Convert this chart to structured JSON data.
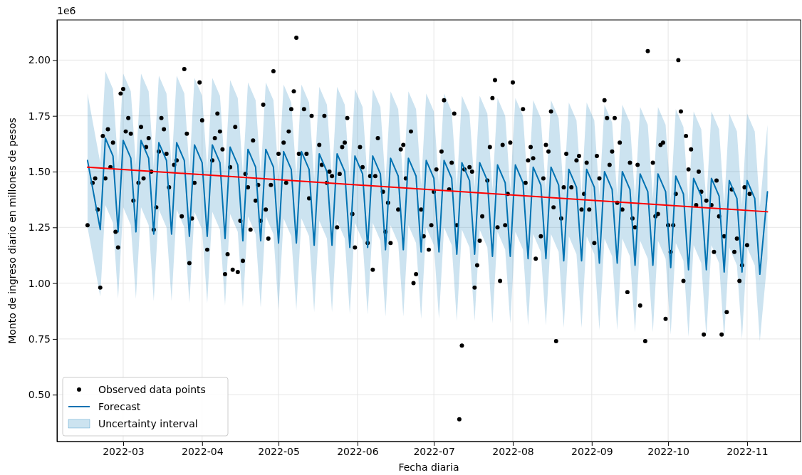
{
  "chart_data": {
    "type": "line",
    "xlabel": "Fecha diaria",
    "ylabel": "Monto de ingreso diario en millones de pesos",
    "annotations": [
      "1e6",
      "Uncertainty interval"
    ],
    "xlim": [
      "2022-02-03",
      "2022-11-22"
    ],
    "ylim": [
      0.29,
      2.18
    ],
    "xticks": [
      "2022-03",
      "2022-04",
      "2022-05",
      "2022-06",
      "2022-07",
      "2022-08",
      "2022-09",
      "2022-10",
      "2022-11"
    ],
    "yticks": [
      {
        "value": 0.5,
        "label": "0.50"
      },
      {
        "value": 0.75,
        "label": "0.75"
      },
      {
        "value": 1.0,
        "label": "1.00"
      },
      {
        "value": 1.25,
        "label": "1.25"
      },
      {
        "value": 1.5,
        "label": "1.50"
      },
      {
        "value": 1.75,
        "label": "1.75"
      },
      {
        "value": 2.0,
        "label": "2.00"
      }
    ],
    "grid": true,
    "legend": "bottom left",
    "series": [
      {
        "type": "scatter",
        "name": "Observed data points",
        "color": "#000000",
        "marker": "circle",
        "x": [
          "2022-02-15",
          "2022-02-17",
          "2022-02-18",
          "2022-02-19",
          "2022-02-20",
          "2022-02-21",
          "2022-02-22",
          "2022-02-23",
          "2022-02-24",
          "2022-02-25",
          "2022-02-26",
          "2022-02-27",
          "2022-02-28",
          "2022-03-01",
          "2022-03-02",
          "2022-03-03",
          "2022-03-04",
          "2022-03-05",
          "2022-03-07",
          "2022-03-08",
          "2022-03-09",
          "2022-03-10",
          "2022-03-11",
          "2022-03-12",
          "2022-03-13",
          "2022-03-14",
          "2022-03-15",
          "2022-03-16",
          "2022-03-17",
          "2022-03-18",
          "2022-03-19",
          "2022-03-21",
          "2022-03-22",
          "2022-03-24",
          "2022-03-25",
          "2022-03-26",
          "2022-03-27",
          "2022-03-28",
          "2022-03-29",
          "2022-03-31",
          "2022-04-01",
          "2022-04-03",
          "2022-04-05",
          "2022-04-06",
          "2022-04-07",
          "2022-04-08",
          "2022-04-09",
          "2022-04-10",
          "2022-04-11",
          "2022-04-12",
          "2022-04-13",
          "2022-04-14",
          "2022-04-15",
          "2022-04-16",
          "2022-04-17",
          "2022-04-18",
          "2022-04-19",
          "2022-04-20",
          "2022-04-21",
          "2022-04-22",
          "2022-04-23",
          "2022-04-24",
          "2022-04-25",
          "2022-04-26",
          "2022-04-27",
          "2022-04-28",
          "2022-04-29",
          "2022-05-01",
          "2022-05-03",
          "2022-05-04",
          "2022-05-05",
          "2022-05-06",
          "2022-05-07",
          "2022-05-08",
          "2022-05-09",
          "2022-05-11",
          "2022-05-12",
          "2022-05-13",
          "2022-05-14",
          "2022-05-17",
          "2022-05-18",
          "2022-05-19",
          "2022-05-20",
          "2022-05-21",
          "2022-05-22",
          "2022-05-24",
          "2022-05-25",
          "2022-05-26",
          "2022-05-27",
          "2022-05-28",
          "2022-05-30",
          "2022-05-31",
          "2022-06-02",
          "2022-06-03",
          "2022-06-05",
          "2022-06-06",
          "2022-06-07",
          "2022-06-08",
          "2022-06-09",
          "2022-06-11",
          "2022-06-12",
          "2022-06-13",
          "2022-06-14",
          "2022-06-17",
          "2022-06-18",
          "2022-06-19",
          "2022-06-20",
          "2022-06-22",
          "2022-06-23",
          "2022-06-24",
          "2022-06-26",
          "2022-06-27",
          "2022-06-29",
          "2022-06-30",
          "2022-07-01",
          "2022-07-02",
          "2022-07-04",
          "2022-07-05",
          "2022-07-07",
          "2022-07-08",
          "2022-07-09",
          "2022-07-10",
          "2022-07-11",
          "2022-07-12",
          "2022-07-13",
          "2022-07-15",
          "2022-07-16",
          "2022-07-17",
          "2022-07-18",
          "2022-07-19",
          "2022-07-20",
          "2022-07-22",
          "2022-07-23",
          "2022-07-24",
          "2022-07-25",
          "2022-07-26",
          "2022-07-27",
          "2022-07-28",
          "2022-07-29",
          "2022-07-30",
          "2022-07-31",
          "2022-08-01",
          "2022-08-05",
          "2022-08-06",
          "2022-08-07",
          "2022-08-08",
          "2022-08-09",
          "2022-08-10",
          "2022-08-12",
          "2022-08-13",
          "2022-08-14",
          "2022-08-15",
          "2022-08-16",
          "2022-08-17",
          "2022-08-18",
          "2022-08-20",
          "2022-08-21",
          "2022-08-22",
          "2022-08-24",
          "2022-08-26",
          "2022-08-27",
          "2022-08-28",
          "2022-08-29",
          "2022-08-30",
          "2022-08-31",
          "2022-09-02",
          "2022-09-03",
          "2022-09-04",
          "2022-09-06",
          "2022-09-07",
          "2022-09-08",
          "2022-09-09",
          "2022-09-10",
          "2022-09-11",
          "2022-09-12",
          "2022-09-13",
          "2022-09-15",
          "2022-09-16",
          "2022-09-17",
          "2022-09-18",
          "2022-09-19",
          "2022-09-20",
          "2022-09-22",
          "2022-09-23",
          "2022-09-25",
          "2022-09-26",
          "2022-09-27",
          "2022-09-28",
          "2022-09-29",
          "2022-09-30",
          "2022-10-01",
          "2022-10-02",
          "2022-10-03",
          "2022-10-04",
          "2022-10-05",
          "2022-10-06",
          "2022-10-07",
          "2022-10-08",
          "2022-10-09",
          "2022-10-10",
          "2022-10-12",
          "2022-10-13",
          "2022-10-14",
          "2022-10-15",
          "2022-10-16",
          "2022-10-18",
          "2022-10-19",
          "2022-10-20",
          "2022-10-21",
          "2022-10-22",
          "2022-10-23",
          "2022-10-24",
          "2022-10-26",
          "2022-10-27",
          "2022-10-28",
          "2022-10-29",
          "2022-10-30",
          "2022-10-31",
          "2022-11-01",
          "2022-11-02"
        ],
        "values": [
          1.26,
          1.45,
          1.47,
          1.33,
          0.98,
          1.66,
          1.47,
          1.69,
          1.52,
          1.63,
          1.23,
          1.16,
          1.85,
          1.87,
          1.68,
          1.74,
          1.67,
          1.37,
          1.45,
          1.7,
          1.47,
          1.61,
          1.65,
          1.5,
          1.24,
          1.34,
          1.59,
          1.74,
          1.69,
          1.58,
          1.43,
          1.53,
          1.55,
          1.3,
          1.96,
          1.67,
          1.09,
          1.29,
          1.45,
          1.9,
          1.73,
          1.15,
          1.55,
          1.65,
          1.76,
          1.68,
          1.6,
          1.04,
          1.13,
          1.52,
          1.06,
          1.7,
          1.05,
          1.28,
          1.1,
          1.49,
          1.43,
          1.24,
          1.64,
          1.37,
          1.44,
          1.28,
          1.8,
          1.33,
          1.2,
          1.44,
          1.95,
          1.58,
          1.63,
          1.45,
          1.68,
          1.78,
          1.86,
          2.1,
          1.58,
          1.78,
          1.58,
          1.38,
          1.75,
          1.62,
          1.53,
          1.75,
          1.45,
          1.5,
          1.48,
          1.25,
          1.49,
          1.61,
          1.63,
          1.74,
          1.31,
          1.16,
          1.61,
          1.52,
          1.18,
          1.48,
          1.06,
          1.48,
          1.65,
          1.41,
          1.23,
          1.36,
          1.18,
          1.33,
          1.6,
          1.62,
          1.47,
          1.68,
          1.0,
          1.04,
          1.33,
          1.21,
          1.15,
          1.26,
          1.41,
          1.51,
          1.59,
          1.82,
          1.42,
          1.54,
          1.76,
          1.26,
          0.39,
          0.72,
          1.51,
          1.52,
          1.5,
          0.98,
          1.08,
          1.19,
          1.3,
          1.46,
          1.61,
          1.83,
          1.91,
          1.25,
          1.01,
          1.62,
          1.26,
          1.4,
          1.63,
          1.9,
          1.78,
          1.45,
          1.55,
          1.61,
          1.56,
          1.11,
          1.21,
          1.47,
          1.62,
          1.59,
          1.77,
          1.34,
          0.74,
          1.29,
          1.43,
          1.58,
          1.43,
          1.55,
          1.57,
          1.33,
          1.4,
          1.54,
          1.33,
          1.18,
          1.57,
          1.47,
          1.82,
          1.74,
          1.53,
          1.59,
          1.74,
          1.36,
          1.63,
          1.33,
          0.96,
          1.54,
          1.29,
          1.25,
          1.53,
          0.9,
          0.74,
          2.04,
          1.54,
          1.3,
          1.31,
          1.62,
          1.63,
          0.84,
          1.26,
          1.14,
          1.26,
          1.4,
          2.0,
          1.77,
          1.01,
          1.66,
          1.51,
          1.6,
          1.35,
          1.5,
          1.41,
          0.77,
          1.37,
          1.35,
          1.14,
          1.46,
          1.3,
          0.77,
          1.21,
          0.87,
          1.42,
          1.14,
          1.2,
          1.01,
          1.08,
          1.43,
          1.17,
          1.4
        ]
      },
      {
        "type": "line",
        "name": "Forecast",
        "color": "#0072b2",
        "x": [
          "2022-02-15",
          "2022-02-20",
          "2022-02-22",
          "2022-02-25",
          "2022-02-27",
          "2022-03-01",
          "2022-03-04",
          "2022-03-06",
          "2022-03-08",
          "2022-03-11",
          "2022-03-13",
          "2022-03-15",
          "2022-03-18",
          "2022-03-20",
          "2022-03-22",
          "2022-03-25",
          "2022-03-27",
          "2022-03-29",
          "2022-04-01",
          "2022-04-03",
          "2022-04-05",
          "2022-04-08",
          "2022-04-10",
          "2022-04-12",
          "2022-04-15",
          "2022-04-17",
          "2022-04-19",
          "2022-04-22",
          "2022-04-24",
          "2022-04-26",
          "2022-04-29",
          "2022-05-01",
          "2022-05-03",
          "2022-05-06",
          "2022-05-08",
          "2022-05-10",
          "2022-05-13",
          "2022-05-15",
          "2022-05-17",
          "2022-05-20",
          "2022-05-22",
          "2022-05-24",
          "2022-05-27",
          "2022-05-29",
          "2022-05-31",
          "2022-06-03",
          "2022-06-05",
          "2022-06-07",
          "2022-06-10",
          "2022-06-12",
          "2022-06-14",
          "2022-06-17",
          "2022-06-19",
          "2022-06-21",
          "2022-06-24",
          "2022-06-26",
          "2022-06-28",
          "2022-07-01",
          "2022-07-03",
          "2022-07-05",
          "2022-07-08",
          "2022-07-10",
          "2022-07-12",
          "2022-07-15",
          "2022-07-17",
          "2022-07-19",
          "2022-07-22",
          "2022-07-24",
          "2022-07-26",
          "2022-07-29",
          "2022-07-31",
          "2022-08-02",
          "2022-08-05",
          "2022-08-07",
          "2022-08-09",
          "2022-08-12",
          "2022-08-14",
          "2022-08-16",
          "2022-08-19",
          "2022-08-21",
          "2022-08-23",
          "2022-08-26",
          "2022-08-28",
          "2022-08-30",
          "2022-09-02",
          "2022-09-04",
          "2022-09-06",
          "2022-09-09",
          "2022-09-11",
          "2022-09-13",
          "2022-09-16",
          "2022-09-18",
          "2022-09-20",
          "2022-09-23",
          "2022-09-25",
          "2022-09-27",
          "2022-09-30",
          "2022-10-02",
          "2022-10-04",
          "2022-10-07",
          "2022-10-09",
          "2022-10-11",
          "2022-10-14",
          "2022-10-16",
          "2022-10-18",
          "2022-10-21",
          "2022-10-23",
          "2022-10-25",
          "2022-10-28",
          "2022-10-30",
          "2022-11-01",
          "2022-11-04",
          "2022-11-06",
          "2022-11-09"
        ],
        "values": [
          1.55,
          1.24,
          1.65,
          1.57,
          1.23,
          1.64,
          1.56,
          1.23,
          1.64,
          1.56,
          1.22,
          1.63,
          1.55,
          1.22,
          1.63,
          1.55,
          1.21,
          1.62,
          1.54,
          1.21,
          1.62,
          1.54,
          1.2,
          1.61,
          1.53,
          1.19,
          1.6,
          1.52,
          1.19,
          1.6,
          1.52,
          1.18,
          1.59,
          1.51,
          1.18,
          1.59,
          1.51,
          1.17,
          1.58,
          1.5,
          1.17,
          1.58,
          1.5,
          1.16,
          1.57,
          1.49,
          1.16,
          1.57,
          1.49,
          1.15,
          1.56,
          1.48,
          1.15,
          1.56,
          1.48,
          1.14,
          1.55,
          1.47,
          1.14,
          1.55,
          1.47,
          1.13,
          1.54,
          1.46,
          1.13,
          1.54,
          1.46,
          1.12,
          1.53,
          1.45,
          1.12,
          1.53,
          1.45,
          1.11,
          1.52,
          1.44,
          1.11,
          1.52,
          1.44,
          1.1,
          1.51,
          1.43,
          1.1,
          1.51,
          1.43,
          1.09,
          1.5,
          1.42,
          1.09,
          1.5,
          1.42,
          1.08,
          1.49,
          1.41,
          1.08,
          1.49,
          1.41,
          1.07,
          1.48,
          1.4,
          1.06,
          1.47,
          1.39,
          1.06,
          1.47,
          1.39,
          1.05,
          1.46,
          1.38,
          1.05,
          1.46,
          1.38,
          1.04,
          1.41
        ],
        "lower": [
          1.25,
          0.94,
          1.35,
          1.27,
          0.93,
          1.34,
          1.26,
          0.93,
          1.34,
          1.26,
          0.92,
          1.33,
          1.25,
          0.92,
          1.33,
          1.25,
          0.91,
          1.32,
          1.24,
          0.91,
          1.32,
          1.24,
          0.9,
          1.31,
          1.23,
          0.89,
          1.3,
          1.22,
          0.89,
          1.3,
          1.22,
          0.88,
          1.29,
          1.21,
          0.88,
          1.29,
          1.21,
          0.87,
          1.28,
          1.2,
          0.87,
          1.28,
          1.2,
          0.86,
          1.27,
          1.19,
          0.86,
          1.27,
          1.19,
          0.85,
          1.26,
          1.18,
          0.85,
          1.26,
          1.18,
          0.84,
          1.25,
          1.17,
          0.84,
          1.25,
          1.17,
          0.83,
          1.24,
          1.16,
          0.83,
          1.24,
          1.16,
          0.82,
          1.23,
          1.15,
          0.82,
          1.23,
          1.15,
          0.81,
          1.22,
          1.14,
          0.81,
          1.22,
          1.14,
          0.8,
          1.21,
          1.13,
          0.8,
          1.21,
          1.13,
          0.79,
          1.2,
          1.12,
          0.79,
          1.2,
          1.12,
          0.78,
          1.19,
          1.11,
          0.78,
          1.19,
          1.11,
          0.77,
          1.18,
          1.1,
          0.76,
          1.17,
          1.09,
          0.76,
          1.17,
          1.09,
          0.75,
          1.16,
          1.08,
          0.75,
          1.16,
          1.08,
          0.74,
          1.11
        ],
        "upper": [
          1.85,
          1.54,
          1.95,
          1.87,
          1.53,
          1.94,
          1.86,
          1.53,
          1.94,
          1.86,
          1.52,
          1.93,
          1.85,
          1.52,
          1.93,
          1.85,
          1.51,
          1.92,
          1.84,
          1.51,
          1.92,
          1.84,
          1.5,
          1.91,
          1.83,
          1.49,
          1.9,
          1.82,
          1.49,
          1.9,
          1.82,
          1.48,
          1.89,
          1.81,
          1.48,
          1.89,
          1.81,
          1.47,
          1.88,
          1.8,
          1.47,
          1.88,
          1.8,
          1.46,
          1.87,
          1.79,
          1.46,
          1.87,
          1.79,
          1.45,
          1.86,
          1.78,
          1.45,
          1.86,
          1.78,
          1.44,
          1.85,
          1.77,
          1.44,
          1.85,
          1.77,
          1.43,
          1.84,
          1.76,
          1.43,
          1.84,
          1.76,
          1.42,
          1.83,
          1.75,
          1.42,
          1.83,
          1.75,
          1.41,
          1.82,
          1.74,
          1.41,
          1.82,
          1.74,
          1.4,
          1.81,
          1.73,
          1.4,
          1.81,
          1.73,
          1.39,
          1.8,
          1.72,
          1.39,
          1.8,
          1.72,
          1.38,
          1.79,
          1.71,
          1.38,
          1.79,
          1.71,
          1.37,
          1.78,
          1.7,
          1.36,
          1.77,
          1.69,
          1.36,
          1.77,
          1.69,
          1.35,
          1.76,
          1.68,
          1.35,
          1.76,
          1.68,
          1.34,
          1.71
        ]
      },
      {
        "color": "#ff0000",
        "x": [
          "2022-02-15",
          "2022-11-09"
        ],
        "values": [
          1.52,
          1.32
        ]
      }
    ]
  }
}
